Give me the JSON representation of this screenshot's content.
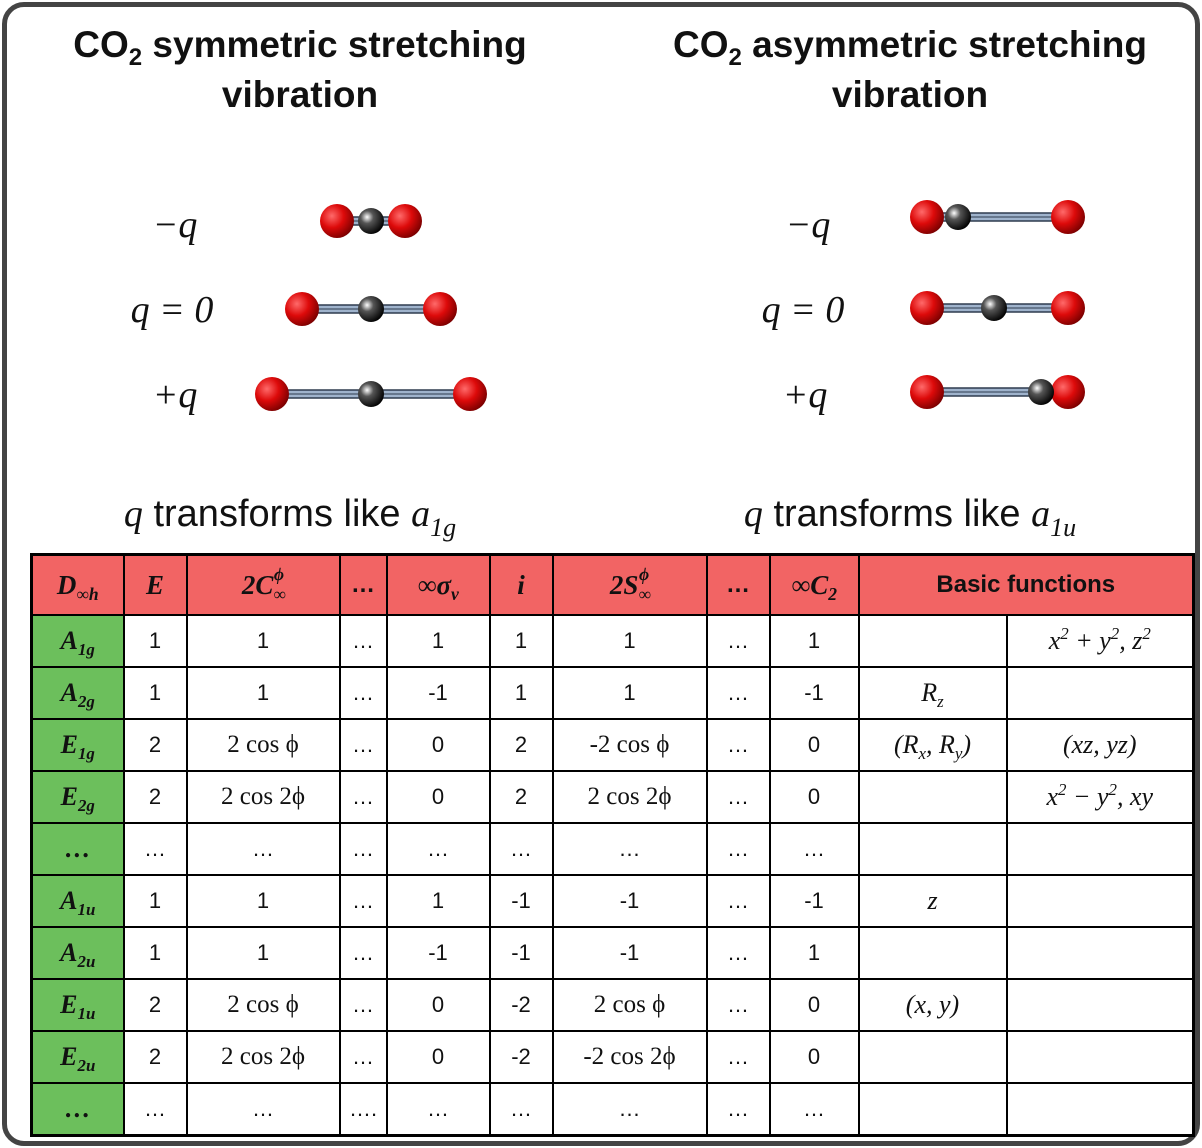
{
  "panels": [
    {
      "title": [
        "CO",
        {
          "sub": "2"
        },
        " symmetric stretching vibration"
      ],
      "states": [
        "−q",
        "q = 0",
        "+q"
      ],
      "caption": [
        {
          "i": "q"
        },
        " transforms like ",
        {
          "i": "a"
        },
        {
          "sub": "1g"
        }
      ]
    },
    {
      "title": [
        "CO",
        {
          "sub": "2"
        },
        " asymmetric stretching vibration"
      ],
      "states": [
        "−q",
        "q = 0",
        "+q"
      ],
      "caption": [
        {
          "i": "q"
        },
        " transforms like ",
        {
          "i": "a"
        },
        {
          "sub": "1u"
        }
      ]
    }
  ],
  "table": {
    "header": [
      [
        "D",
        {
          "sub": "∞h"
        }
      ],
      "E",
      [
        "2C",
        {
          "sub": "∞"
        },
        {
          "sup": "ϕ"
        }
      ],
      "…",
      [
        "∞σ",
        {
          "sub": "v"
        }
      ],
      "i",
      [
        "2S",
        {
          "sub": "∞"
        },
        {
          "sup": "ϕ"
        }
      ],
      "…",
      [
        "∞C",
        {
          "sub": "2"
        }
      ],
      "Basic functions"
    ],
    "rows": [
      {
        "label": [
          "A",
          {
            "sub": "1g"
          }
        ],
        "cells": [
          1,
          1,
          "…",
          1,
          1,
          1,
          "…",
          1,
          null,
          [
            "x",
            {
              "sup": "2"
            },
            " + y",
            {
              "sup": "2"
            },
            ", z",
            {
              "sup": "2"
            }
          ]
        ]
      },
      {
        "label": [
          "A",
          {
            "sub": "2g"
          }
        ],
        "cells": [
          1,
          1,
          "…",
          -1,
          1,
          1,
          "…",
          -1,
          [
            "R",
            {
              "sub": "z"
            }
          ],
          null
        ]
      },
      {
        "label": [
          "E",
          {
            "sub": "1g"
          }
        ],
        "cells": [
          2,
          "2 cos ϕ",
          "…",
          0,
          2,
          "-2 cos ϕ",
          "…",
          0,
          [
            "(R",
            {
              "sub": "x"
            },
            ", R",
            {
              "sub": "y"
            },
            ")"
          ],
          "(xz, yz)"
        ]
      },
      {
        "label": [
          "E",
          {
            "sub": "2g"
          }
        ],
        "cells": [
          2,
          "2 cos 2ϕ",
          "…",
          0,
          2,
          "2 cos 2ϕ",
          "…",
          0,
          null,
          [
            "x",
            {
              "sup": "2"
            },
            " − y",
            {
              "sup": "2"
            },
            ", xy"
          ]
        ]
      },
      {
        "label": "…",
        "cells": [
          "…",
          "…",
          "…",
          "…",
          "…",
          "…",
          "…",
          "…",
          null,
          null
        ]
      },
      {
        "label": [
          "A",
          {
            "sub": "1u"
          }
        ],
        "cells": [
          1,
          1,
          "…",
          1,
          -1,
          -1,
          "…",
          -1,
          "z",
          null
        ]
      },
      {
        "label": [
          "A",
          {
            "sub": "2u"
          }
        ],
        "cells": [
          1,
          1,
          "…",
          -1,
          -1,
          -1,
          "…",
          1,
          null,
          null
        ]
      },
      {
        "label": [
          "E",
          {
            "sub": "1u"
          }
        ],
        "cells": [
          2,
          "2 cos ϕ",
          "…",
          0,
          -2,
          "2 cos ϕ",
          "…",
          0,
          "(x, y)",
          null
        ]
      },
      {
        "label": [
          "E",
          {
            "sub": "2u"
          }
        ],
        "cells": [
          2,
          "2 cos 2ϕ",
          "…",
          0,
          -2,
          "-2 cos 2ϕ",
          "…",
          0,
          null,
          null
        ]
      },
      {
        "label": "…",
        "cells": [
          "…",
          "…",
          "….",
          "…",
          "…",
          "…",
          "…",
          "…",
          null,
          null
        ]
      }
    ]
  }
}
